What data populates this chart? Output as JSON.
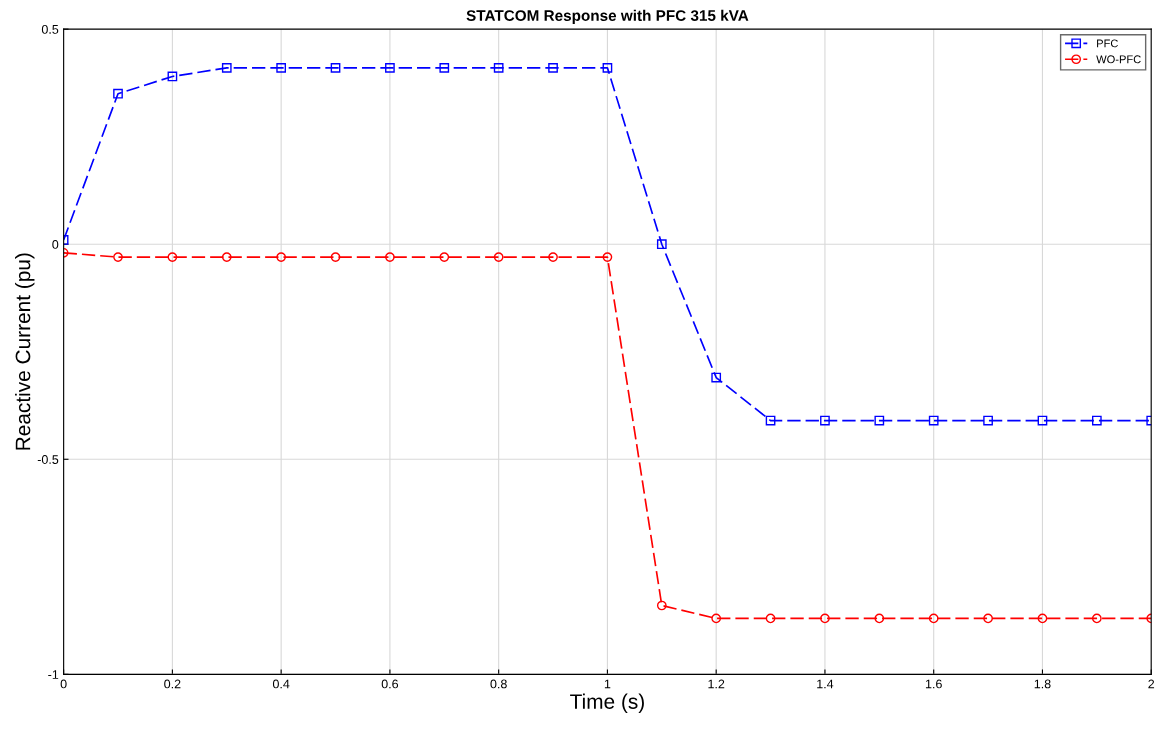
{
  "chart_data": {
    "type": "line",
    "title": "STATCOM Response with PFC 315 kVA",
    "xlabel": "Time (s)",
    "ylabel": "Reactive Current (pu)",
    "x": [
      0,
      0.1,
      0.2,
      0.3,
      0.4,
      0.5,
      0.6,
      0.7,
      0.8,
      0.9,
      1.0,
      1.1,
      1.2,
      1.3,
      1.4,
      1.5,
      1.6,
      1.7,
      1.8,
      1.9,
      2.0
    ],
    "series": [
      {
        "name": "PFC",
        "color": "#0000ff",
        "marker": "square",
        "values": [
          0.01,
          0.35,
          0.39,
          0.41,
          0.41,
          0.41,
          0.41,
          0.41,
          0.41,
          0.41,
          0.41,
          0.0,
          -0.31,
          -0.41,
          -0.41,
          -0.41,
          -0.41,
          -0.41,
          -0.41,
          -0.41,
          -0.41
        ]
      },
      {
        "name": "WO-PFC",
        "color": "#ff0000",
        "marker": "circle",
        "values": [
          -0.02,
          -0.03,
          -0.03,
          -0.03,
          -0.03,
          -0.03,
          -0.03,
          -0.03,
          -0.03,
          -0.03,
          -0.03,
          -0.84,
          -0.87,
          -0.87,
          -0.87,
          -0.87,
          -0.87,
          -0.87,
          -0.87,
          -0.87,
          -0.87
        ]
      }
    ],
    "xlim": [
      0,
      2
    ],
    "xticks": [
      0,
      0.2,
      0.4,
      0.6,
      0.8,
      1,
      1.2,
      1.4,
      1.6,
      1.8,
      2
    ],
    "ylim": [
      -1,
      0.5
    ],
    "yticks": [
      {
        "value": -1,
        "label": "-1"
      },
      {
        "value": -0.5,
        "label": "-0.5"
      },
      0,
      0.5
    ],
    "grid": true,
    "legend": "top right",
    "line_style": "dashed"
  }
}
